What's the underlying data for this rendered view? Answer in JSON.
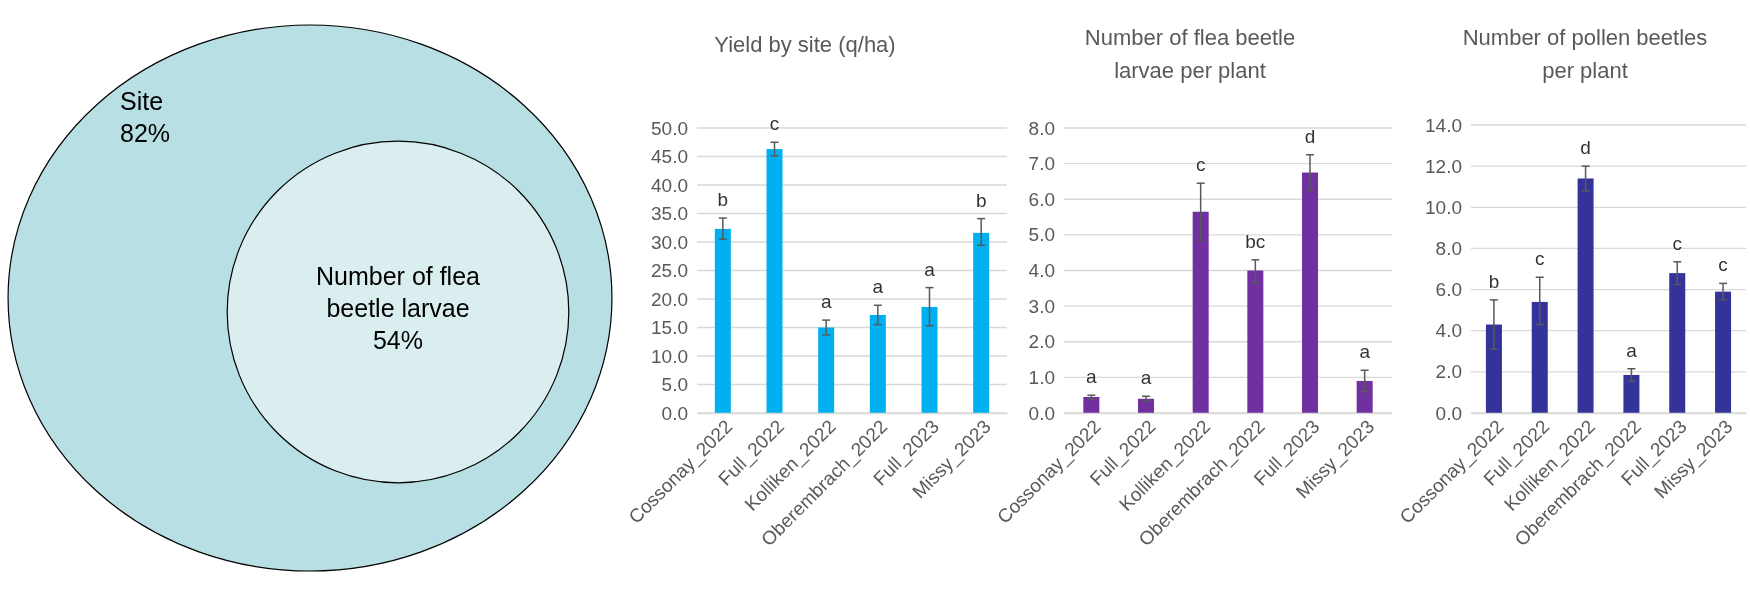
{
  "chart_data": [
    {
      "type": "other",
      "categories": [
        "Site",
        "Number of flea beetle larvae"
      ],
      "values": [
        82,
        54
      ],
      "value_labels": [
        "82%",
        "54%"
      ],
      "colors": [
        "#b8dfe3",
        "#daeef0"
      ]
    },
    {
      "type": "bar",
      "title": "Yield by site (q/ha)",
      "categories": [
        "Cossonay_2022",
        "Full_2022",
        "Kolliken_2022",
        "Oberembrach_2022",
        "Full_2023",
        "Missy_2023"
      ],
      "color": "#00b0f0",
      "values": [
        32.3,
        46.3,
        15.0,
        17.2,
        18.6,
        31.6
      ],
      "errors": [
        [
          30.5,
          34.2
        ],
        [
          45.1,
          47.5
        ],
        [
          13.7,
          16.3
        ],
        [
          15.5,
          18.9
        ],
        [
          15.3,
          22.0
        ],
        [
          29.4,
          34.1
        ]
      ],
      "ylim": [
        0,
        50
      ],
      "yticks": [
        {
          "value": 0,
          "label": "0.0"
        },
        {
          "value": 5,
          "label": "5.0"
        },
        {
          "value": 10,
          "label": "10.0"
        },
        {
          "value": 15,
          "label": "15.0"
        },
        {
          "value": 20,
          "label": "20.0"
        },
        {
          "value": 25,
          "label": "25.0"
        },
        {
          "value": 30,
          "label": "30.0"
        },
        {
          "value": 35,
          "label": "35.0"
        },
        {
          "value": 40,
          "label": "40.0"
        },
        {
          "value": 45,
          "label": "45.0"
        },
        {
          "value": 50,
          "label": "50.0"
        }
      ],
      "grid": "y",
      "annotations": [
        {
          "text": "b",
          "x": "Cossonay_2022",
          "y": 34.2
        },
        {
          "text": "c",
          "x": "Full_2022",
          "y": 47.5
        },
        {
          "text": "a",
          "x": "Kolliken_2022",
          "y": 16.3
        },
        {
          "text": "a",
          "x": "Oberembrach_2022",
          "y": 18.9
        },
        {
          "text": "a",
          "x": "Full_2023",
          "y": 22.0
        },
        {
          "text": "b",
          "x": "Missy_2023",
          "y": 34.1
        }
      ]
    },
    {
      "type": "bar",
      "title": "Number of flea beetle\nlarvae per plant",
      "categories": [
        "Cossonay_2022",
        "Full_2022",
        "Kolliken_2022",
        "Oberembrach_2022",
        "Full_2023",
        "Missy_2023"
      ],
      "color": "#7030a0",
      "values": [
        0.45,
        0.4,
        5.65,
        4.0,
        6.75,
        0.9
      ],
      "errors": [
        [
          0.38,
          0.5
        ],
        [
          0.33,
          0.47
        ],
        [
          4.85,
          6.45
        ],
        [
          3.65,
          4.3
        ],
        [
          6.25,
          7.25
        ],
        [
          0.6,
          1.2
        ]
      ],
      "ylim": [
        0,
        8
      ],
      "yticks": [
        {
          "value": 0,
          "label": "0.0"
        },
        {
          "value": 1,
          "label": "1.0"
        },
        {
          "value": 2,
          "label": "2.0"
        },
        {
          "value": 3,
          "label": "3.0"
        },
        {
          "value": 4,
          "label": "4.0"
        },
        {
          "value": 5,
          "label": "5.0"
        },
        {
          "value": 6,
          "label": "6.0"
        },
        {
          "value": 7,
          "label": "7.0"
        },
        {
          "value": 8,
          "label": "8.0"
        }
      ],
      "grid": "y",
      "annotations": [
        {
          "text": "a",
          "x": "Cossonay_2022",
          "y": 0.5
        },
        {
          "text": "a",
          "x": "Full_2022",
          "y": 0.47
        },
        {
          "text": "c",
          "x": "Kolliken_2022",
          "y": 6.45
        },
        {
          "text": "bc",
          "x": "Oberembrach_2022",
          "y": 4.3
        },
        {
          "text": "d",
          "x": "Full_2023",
          "y": 7.25
        },
        {
          "text": "a",
          "x": "Missy_2023",
          "y": 1.2
        }
      ]
    },
    {
      "type": "bar",
      "title": "Number of pollen beetles\nper plant",
      "categories": [
        "Cossonay_2022",
        "Full_2022",
        "Kolliken_2022",
        "Oberembrach_2022",
        "Full_2023",
        "Missy_2023"
      ],
      "color": "#333399",
      "values": [
        4.3,
        5.4,
        11.4,
        1.85,
        6.8,
        5.9
      ],
      "errors": [
        [
          3.1,
          5.5
        ],
        [
          4.3,
          6.6
        ],
        [
          10.8,
          12.0
        ],
        [
          1.55,
          2.15
        ],
        [
          6.25,
          7.35
        ],
        [
          5.5,
          6.3
        ]
      ],
      "ylim": [
        0,
        14
      ],
      "yticks": [
        {
          "value": 0,
          "label": "0.0"
        },
        {
          "value": 2,
          "label": "2.0"
        },
        {
          "value": 4,
          "label": "4.0"
        },
        {
          "value": 6,
          "label": "6.0"
        },
        {
          "value": 8,
          "label": "8.0"
        },
        {
          "value": 10,
          "label": "10.0"
        },
        {
          "value": 12,
          "label": "12.0"
        },
        {
          "value": 14,
          "label": "14.0"
        }
      ],
      "grid": "y",
      "annotations": [
        {
          "text": "b",
          "x": "Cossonay_2022",
          "y": 5.5
        },
        {
          "text": "c",
          "x": "Full_2022",
          "y": 6.6
        },
        {
          "text": "d",
          "x": "Kolliken_2022",
          "y": 12.0
        },
        {
          "text": "a",
          "x": "Oberembrach_2022",
          "y": 2.15
        },
        {
          "text": "c",
          "x": "Full_2023",
          "y": 7.35
        },
        {
          "text": "c",
          "x": "Missy_2023",
          "y": 6.3
        }
      ]
    }
  ]
}
